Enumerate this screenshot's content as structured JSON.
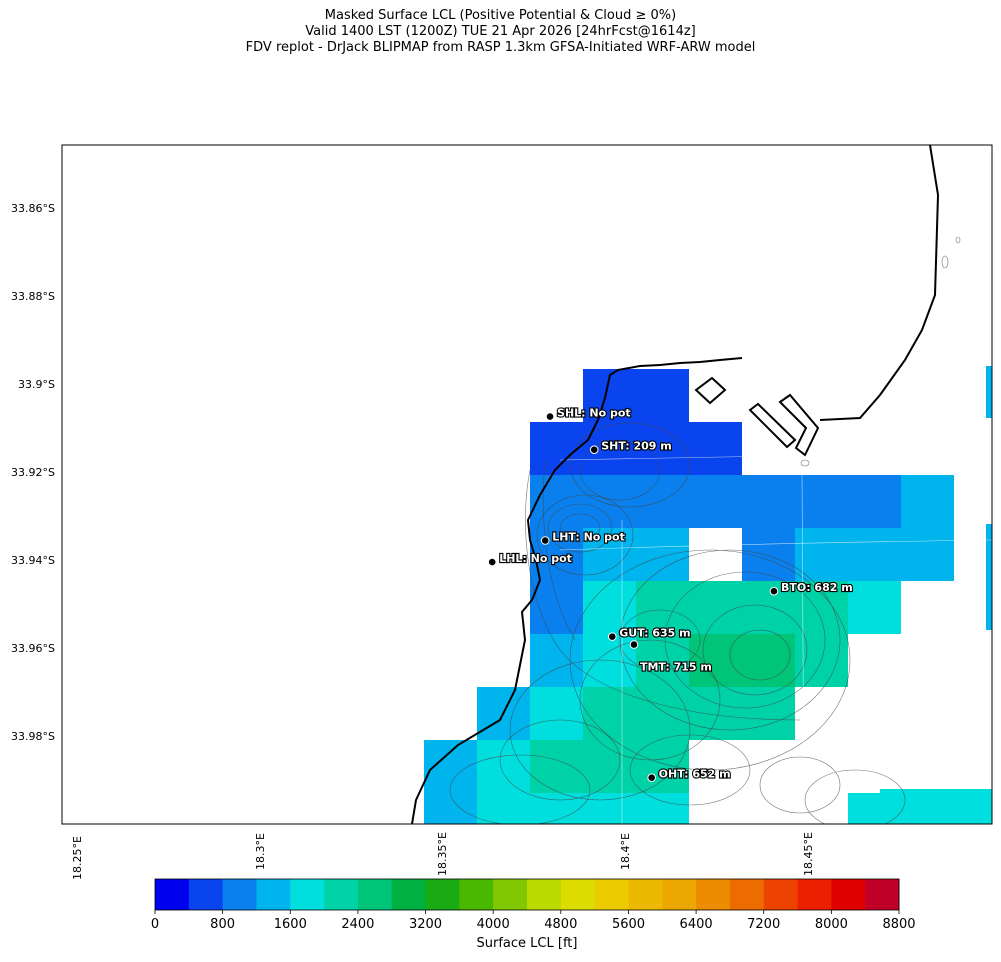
{
  "title": {
    "line1": "Masked Surface LCL (Positive Potential & Cloud ≥ 0%)",
    "line2": "Valid 1400 LST (1200Z) TUE 21 Apr 2026 [24hrFcst@1614z]",
    "line3": "FDV replot - DrJack BLIPMAP from RASP 1.3km GFSA-Initiated WRF-ARW model"
  },
  "lat_labels": [
    "33.86°S",
    "33.88°S",
    "33.9°S",
    "33.92°S",
    "33.94°S",
    "33.96°S",
    "33.98°S"
  ],
  "lon_labels": [
    "18.25°E",
    "18.3°E",
    "18.35°E",
    "18.4°E",
    "18.45°E"
  ],
  "map_extent": {
    "lon_min": 18.247,
    "lon_max": 18.4995,
    "lat_top": -33.846,
    "lat_bottom": -34.0
  },
  "stations": [
    {
      "code": "SHL",
      "label": "SHL: No pot",
      "lon": 18.3795,
      "lat": -33.9076
    },
    {
      "code": "SHT",
      "label": "SHT: 209 m",
      "lon": 18.3915,
      "lat": -33.9151
    },
    {
      "code": "LHT",
      "label": "LHT: No pot",
      "lon": 18.3782,
      "lat": -33.9357
    },
    {
      "code": "LHL",
      "label": "LHL: No pot",
      "lon": 18.3638,
      "lat": -33.9406
    },
    {
      "code": "BTO",
      "label": "BTO: 682 m",
      "lon": 18.4403,
      "lat": -33.9472
    },
    {
      "code": "GUT",
      "label": "GUT: 635 m",
      "lon": 18.3964,
      "lat": -33.9575
    },
    {
      "code": "TMT",
      "label": "TMT: 715 m",
      "lon": 18.4023,
      "lat": -33.9593
    },
    {
      "code": "OHT",
      "label": "OHT: 652 m",
      "lon": 18.4071,
      "lat": -33.9895
    }
  ],
  "colorbar": {
    "label": "Surface LCL [ft]",
    "tick_labels": [
      "0",
      "800",
      "1600",
      "2400",
      "3200",
      "4000",
      "4800",
      "5600",
      "6400",
      "7200",
      "8000",
      "8800"
    ],
    "tick_values": [
      0,
      800,
      1600,
      2400,
      3200,
      4000,
      4800,
      5600,
      6400,
      7200,
      8000,
      8800
    ],
    "range": [
      0,
      8800
    ],
    "colors": [
      "#0000ee",
      "#0a44ee",
      "#0a80ee",
      "#00b4ee",
      "#00dede",
      "#00d2a8",
      "#00c478",
      "#00b040",
      "#1aaa14",
      "#4ab800",
      "#82c800",
      "#bada00",
      "#dcdc00",
      "#eccc00",
      "#ecb800",
      "#eca800",
      "#ec8c00",
      "#ec6c00",
      "#ec4400",
      "#ec2000",
      "#e00000",
      "#c00028"
    ]
  },
  "lcl_cells": [
    {
      "col": 11,
      "row": 4,
      "level": 1
    },
    {
      "col": 12,
      "row": 4,
      "level": 1
    },
    {
      "col": 10,
      "row": 5,
      "level": 1
    },
    {
      "col": 11,
      "row": 5,
      "level": 1
    },
    {
      "col": 12,
      "row": 5,
      "level": 1
    },
    {
      "col": 13,
      "row": 5,
      "level": 1
    },
    {
      "col": 10,
      "row": 6,
      "level": 2
    },
    {
      "col": 11,
      "row": 6,
      "level": 2
    },
    {
      "col": 12,
      "row": 6,
      "level": 2
    },
    {
      "col": 13,
      "row": 6,
      "level": 2
    },
    {
      "col": 14,
      "row": 6,
      "level": 2
    },
    {
      "col": 15,
      "row": 6,
      "level": 2
    },
    {
      "col": 16,
      "row": 6,
      "level": 2
    },
    {
      "col": 17,
      "row": 6,
      "level": 3
    },
    {
      "col": 10,
      "row": 7,
      "level": 2
    },
    {
      "col": 11,
      "row": 7,
      "level": 3
    },
    {
      "col": 12,
      "row": 7,
      "level": 3
    },
    {
      "col": 14,
      "row": 7,
      "level": 2
    },
    {
      "col": 15,
      "row": 7,
      "level": 3
    },
    {
      "col": 16,
      "row": 7,
      "level": 3
    },
    {
      "col": 17,
      "row": 7,
      "level": 3
    },
    {
      "col": 10,
      "row": 8,
      "level": 2
    },
    {
      "col": 11,
      "row": 8,
      "level": 4
    },
    {
      "col": 12,
      "row": 8,
      "level": 5
    },
    {
      "col": 13,
      "row": 8,
      "level": 5
    },
    {
      "col": 14,
      "row": 8,
      "level": 5
    },
    {
      "col": 15,
      "row": 8,
      "level": 5
    },
    {
      "col": 16,
      "row": 8,
      "level": 4
    },
    {
      "col": 10,
      "row": 9,
      "level": 3
    },
    {
      "col": 11,
      "row": 9,
      "level": 4
    },
    {
      "col": 12,
      "row": 9,
      "level": 5
    },
    {
      "col": 13,
      "row": 9,
      "level": 6
    },
    {
      "col": 14,
      "row": 9,
      "level": 6
    },
    {
      "col": 15,
      "row": 9,
      "level": 5
    },
    {
      "col": 9,
      "row": 10,
      "level": 3
    },
    {
      "col": 10,
      "row": 10,
      "level": 4
    },
    {
      "col": 11,
      "row": 10,
      "level": 5
    },
    {
      "col": 12,
      "row": 10,
      "level": 5
    },
    {
      "col": 13,
      "row": 10,
      "level": 5
    },
    {
      "col": 14,
      "row": 10,
      "level": 5
    },
    {
      "col": 8,
      "row": 11,
      "level": 3
    },
    {
      "col": 9,
      "row": 11,
      "level": 4
    },
    {
      "col": 10,
      "row": 11,
      "level": 5
    },
    {
      "col": 11,
      "row": 11,
      "level": 5
    },
    {
      "col": 12,
      "row": 11,
      "level": 5
    },
    {
      "col": 8,
      "row": 12,
      "level": 3
    },
    {
      "col": 9,
      "row": 12,
      "level": 4
    },
    {
      "col": 10,
      "row": 12,
      "level": 4
    },
    {
      "col": 11,
      "row": 12,
      "level": 4
    },
    {
      "col": 12,
      "row": 12,
      "level": 4
    },
    {
      "col": 16,
      "row": 12,
      "level": 4
    },
    {
      "col": 17,
      "row": 12,
      "level": 4
    }
  ]
}
